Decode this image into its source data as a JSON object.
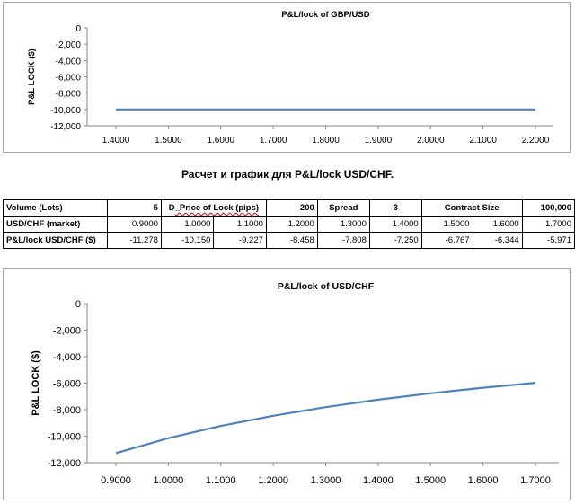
{
  "chart1": {
    "chart_data": {
      "type": "line",
      "title": "P&L/lock of GBP/USD",
      "ylabel": "P&L LOCK ($)",
      "xlabel": "",
      "x": [
        1.4,
        1.5,
        1.6,
        1.7,
        1.8,
        1.9,
        2.0,
        2.1,
        2.2
      ],
      "x_tick_labels": [
        "1.4000",
        "1.5000",
        "1.6000",
        "1.7000",
        "1.8000",
        "1.9000",
        "2.0000",
        "2.1000",
        "2.2000"
      ],
      "series": [
        {
          "values": [
            -10000,
            -10000,
            -10000,
            -10000,
            -10000,
            -10000,
            -10000,
            -10000,
            -10000
          ]
        }
      ],
      "ylim": [
        -12000,
        0
      ],
      "y_ticks": [
        0,
        -2000,
        -4000,
        -6000,
        -8000,
        -10000,
        -12000
      ],
      "y_tick_labels": [
        "0",
        "-2,000",
        "-4,000",
        "-6,000",
        "-8,000",
        "-10,000",
        "-12,000"
      ],
      "grid": false,
      "line_color": "#4f81bd"
    }
  },
  "heading": "Расчет и график для P&L/lock USD/CHF.",
  "table": {
    "row1": {
      "volume_label": "Volume (Lots)",
      "volume_value": "5",
      "price_label_prefix": "D",
      "price_label_rest": "_Price of Lock  (pips)",
      "price_value": "-200",
      "spread_label": "Spread",
      "spread_value": "3",
      "contract_label": "Contract Size",
      "contract_value": "100,000"
    },
    "row2": {
      "label": "USD/CHF (market)",
      "values": [
        "0.9000",
        "1.0000",
        "1.1000",
        "1.2000",
        "1.3000",
        "1.4000",
        "1.5000",
        "1.6000",
        "1.7000"
      ]
    },
    "row3": {
      "label": "P&L/lock USD/CHF ($)",
      "values": [
        "-11,278",
        "-10,150",
        "-9,227",
        "-8,458",
        "-7,808",
        "-7,250",
        "-6,767",
        "-6,344",
        "-5,971"
      ]
    }
  },
  "chart2": {
    "chart_data": {
      "type": "line",
      "title": "P&L/lock of USD/CHF",
      "ylabel": "P&L LOCK ($)",
      "xlabel": "",
      "x": [
        0.9,
        1.0,
        1.1,
        1.2,
        1.3,
        1.4,
        1.5,
        1.6,
        1.7
      ],
      "x_tick_labels": [
        "0.9000",
        "1.0000",
        "1.1000",
        "1.2000",
        "1.3000",
        "1.4000",
        "1.5000",
        "1.6000",
        "1.7000"
      ],
      "series": [
        {
          "values": [
            -11278,
            -10150,
            -9227,
            -8458,
            -7808,
            -7250,
            -6767,
            -6344,
            -5971
          ]
        }
      ],
      "ylim": [
        -12000,
        0
      ],
      "y_ticks": [
        0,
        -2000,
        -4000,
        -6000,
        -8000,
        -10000,
        -12000
      ],
      "y_tick_labels": [
        "0",
        "-2,000",
        "-4,000",
        "-6,000",
        "-8,000",
        "-10,000",
        "-12,000"
      ],
      "grid": false,
      "line_color": "#4f81bd"
    }
  }
}
